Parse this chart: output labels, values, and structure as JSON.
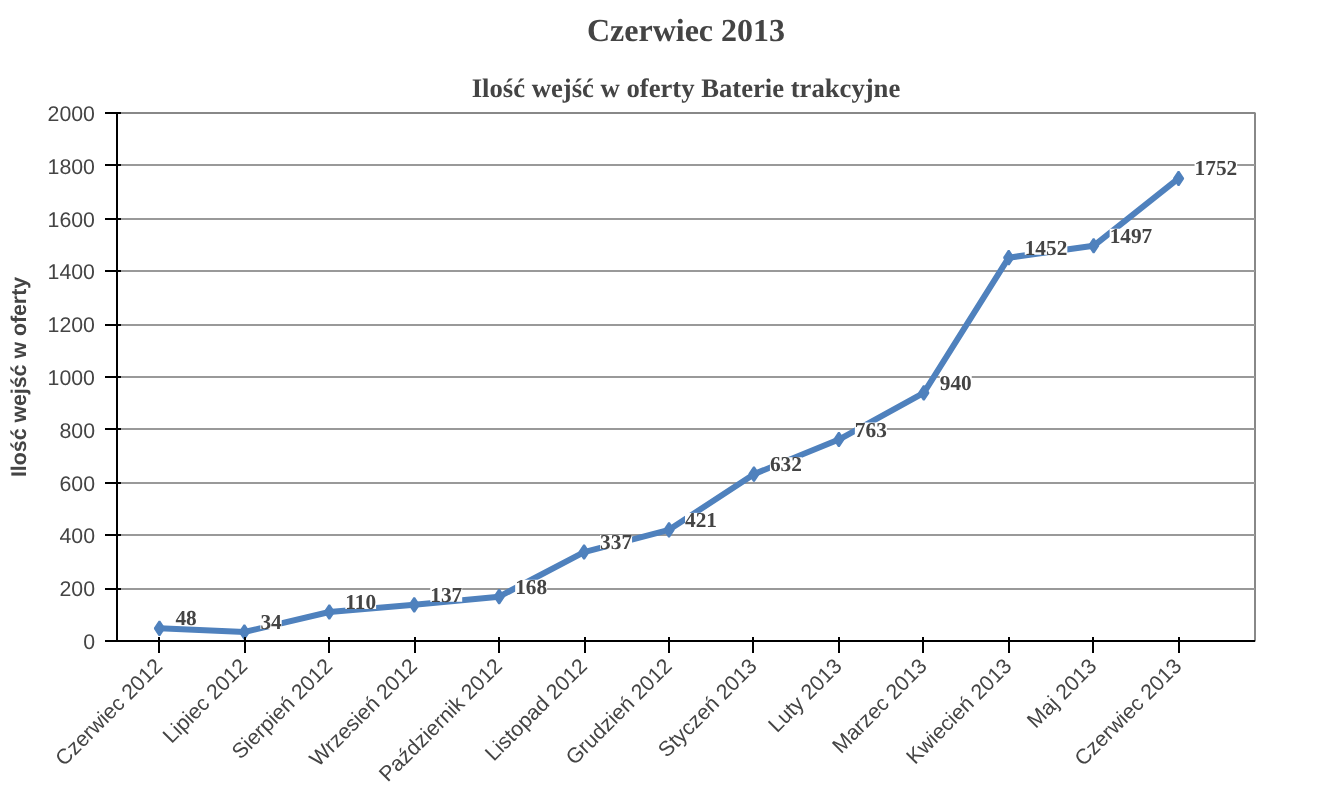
{
  "chart_data": {
    "type": "line",
    "title": "Czerwiec 2013",
    "subtitle": "Ilość wejść w oferty Baterie trakcyjne",
    "ylabel": "Ilość wejść w oferty",
    "categories": [
      "Czerwiec 2012",
      "Lipiec 2012",
      "Sierpień 2012",
      "Wrzesień 2012",
      "Październik 2012",
      "Listopad 2012",
      "Grudzień 2012",
      "Styczeń 2013",
      "Luty 2013",
      "Marzec 2013",
      "Kwiecień 2013",
      "Maj 2013",
      "Czerwiec 2013"
    ],
    "series": [
      {
        "color": "#4f81bd",
        "values": [
          48,
          34,
          110,
          137,
          168,
          337,
          421,
          632,
          763,
          940,
          1452,
          1497,
          1752
        ]
      }
    ],
    "ylim": [
      0,
      2000
    ],
    "yticks": [
      0,
      200,
      400,
      600,
      800,
      1000,
      1200,
      1400,
      1600,
      1800,
      2000
    ],
    "grid": "y",
    "data_labels": true,
    "marker": "diamond",
    "line_style": "solid"
  }
}
